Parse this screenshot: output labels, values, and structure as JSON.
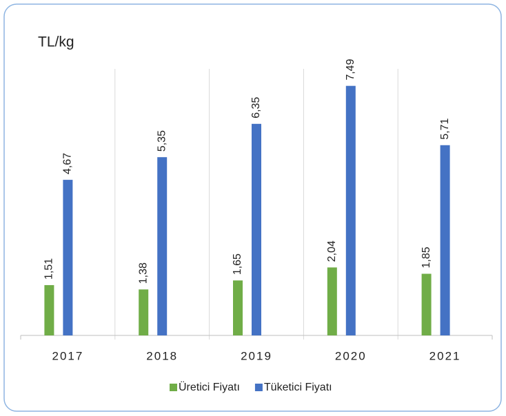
{
  "chart_data": {
    "type": "bar",
    "title": "TL/kg",
    "categories": [
      "2017",
      "2018",
      "2019",
      "2020",
      "2021"
    ],
    "series": [
      {
        "name": "Üretici Fiyatı",
        "color": "#70ad47",
        "values": [
          1.51,
          1.38,
          1.65,
          2.04,
          1.85
        ],
        "value_labels": [
          "1,51",
          "1,38",
          "1,65",
          "2,04",
          "1,85"
        ]
      },
      {
        "name": "Tüketici Fiyatı",
        "color": "#4472c4",
        "values": [
          4.67,
          5.35,
          6.35,
          7.49,
          5.71
        ],
        "value_labels": [
          "4,67",
          "5,35",
          "6,35",
          "7,49",
          "5,71"
        ]
      }
    ],
    "ylim": [
      0,
      8
    ]
  }
}
